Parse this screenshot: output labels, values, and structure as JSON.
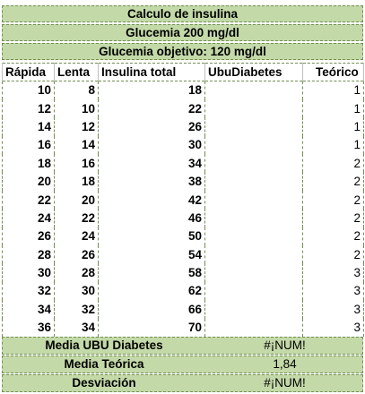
{
  "header": {
    "title": "Calculo de insulina",
    "glucemia": "Glucemia 200 mg/dl",
    "objetivo": "Glucemia objetivo: 120 mg/dl"
  },
  "columns": [
    "Rápida",
    "Lenta",
    "Insulina total",
    "UbuDiabetes",
    "Teórico"
  ],
  "rows": [
    [
      "10",
      "8",
      "18",
      "",
      "1"
    ],
    [
      "12",
      "10",
      "22",
      "",
      "1"
    ],
    [
      "14",
      "12",
      "26",
      "",
      "1"
    ],
    [
      "16",
      "14",
      "30",
      "",
      "1"
    ],
    [
      "18",
      "16",
      "34",
      "",
      "2"
    ],
    [
      "20",
      "18",
      "38",
      "",
      "2"
    ],
    [
      "22",
      "20",
      "42",
      "",
      "2"
    ],
    [
      "24",
      "22",
      "46",
      "",
      "2"
    ],
    [
      "26",
      "24",
      "50",
      "",
      "2"
    ],
    [
      "28",
      "26",
      "54",
      "",
      "2"
    ],
    [
      "30",
      "28",
      "58",
      "",
      "3"
    ],
    [
      "32",
      "30",
      "62",
      "",
      "3"
    ],
    [
      "34",
      "32",
      "66",
      "",
      "3"
    ],
    [
      "36",
      "34",
      "70",
      "",
      "3"
    ]
  ],
  "summary": [
    {
      "label": "Media UBU Diabetes",
      "value": "#¡NUM!"
    },
    {
      "label": "Media Teórica",
      "value": "1,84"
    },
    {
      "label": "Desviación",
      "value": "#¡NUM!"
    }
  ],
  "colors": {
    "band_fill": "#c4d9a8",
    "dashed_border": "#6f8f52"
  }
}
